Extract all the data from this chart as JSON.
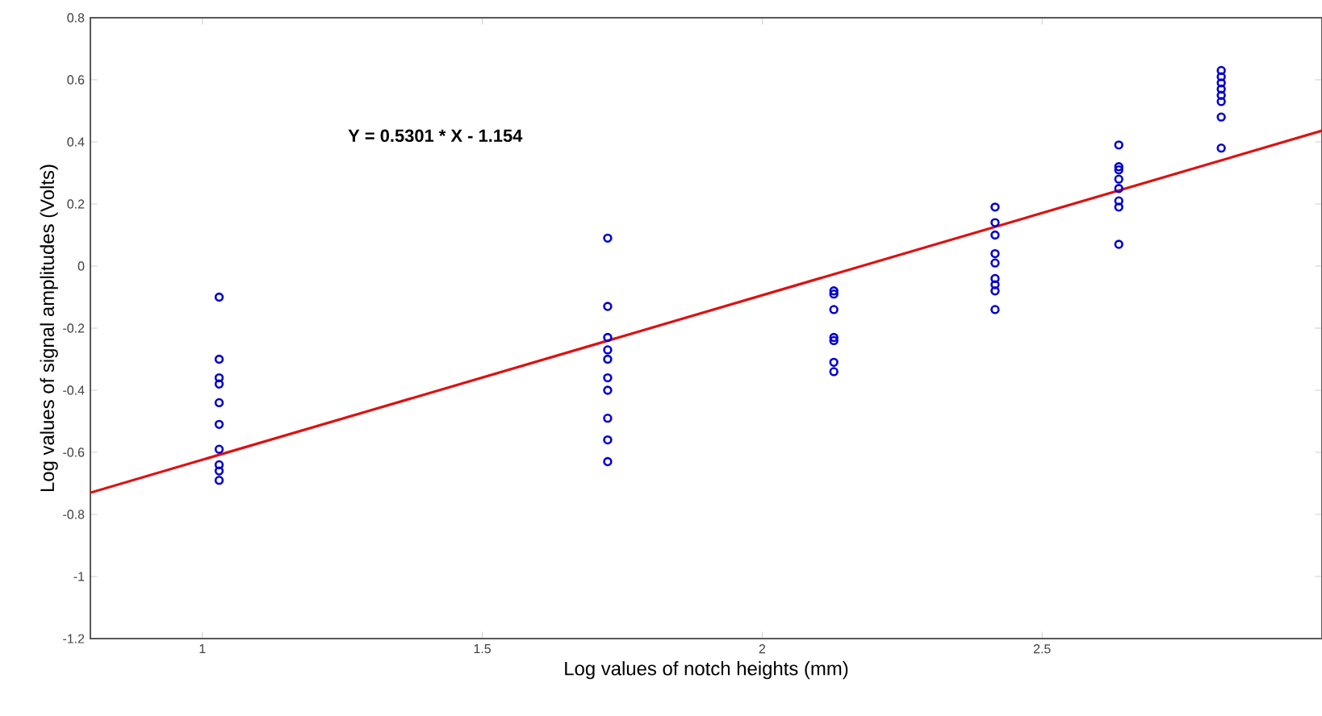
{
  "chart_data": {
    "type": "scatter",
    "xlabel": "Log values of notch heights (mm)",
    "ylabel": "Log values of signal amplitudes (Volts)",
    "annotations": [
      "Y = 0.5301 * X - 1.154"
    ],
    "xlim": [
      0.8,
      3
    ],
    "ylim": [
      -1.2,
      0.8
    ],
    "xticks": [
      1,
      1.5,
      2,
      2.5
    ],
    "yticks": [
      -1.2,
      -1,
      -0.8,
      -0.6,
      -0.4,
      -0.2,
      0,
      0.2,
      0.4,
      0.6,
      0.8
    ],
    "grid": false,
    "marker": "circle",
    "series": [
      {
        "color": "#0000cc",
        "x": [
          1.03,
          1.03,
          1.03,
          1.03,
          1.03,
          1.03,
          1.03,
          1.03,
          1.03,
          1.03,
          1.724,
          1.724,
          1.724,
          1.724,
          1.724,
          1.724,
          1.724,
          1.724,
          1.724,
          1.724,
          2.128,
          2.128,
          2.128,
          2.128,
          2.128,
          2.128,
          2.128,
          2.416,
          2.416,
          2.416,
          2.416,
          2.416,
          2.416,
          2.416,
          2.416,
          2.416,
          2.637,
          2.637,
          2.637,
          2.637,
          2.637,
          2.637,
          2.637,
          2.637,
          2.82,
          2.82,
          2.82,
          2.82,
          2.82,
          2.82,
          2.82,
          2.82
        ],
        "values": [
          -0.1,
          -0.3,
          -0.36,
          -0.38,
          -0.44,
          -0.51,
          -0.59,
          -0.64,
          -0.66,
          -0.69,
          0.09,
          -0.13,
          -0.23,
          -0.27,
          -0.3,
          -0.36,
          -0.4,
          -0.49,
          -0.56,
          -0.63,
          -0.08,
          -0.09,
          -0.14,
          -0.23,
          -0.24,
          -0.31,
          -0.34,
          0.19,
          0.14,
          0.1,
          0.04,
          0.01,
          -0.04,
          -0.06,
          -0.08,
          -0.14,
          0.39,
          0.32,
          0.31,
          0.28,
          0.25,
          0.21,
          0.19,
          0.07,
          0.63,
          0.61,
          0.59,
          0.57,
          0.55,
          0.53,
          0.48,
          0.38
        ]
      },
      {
        "type": "line",
        "color": "#dd1111",
        "marker": "none",
        "line_style": "solid",
        "x": [
          0.8,
          3
        ],
        "values": [
          -0.73,
          0.436
        ]
      }
    ]
  }
}
